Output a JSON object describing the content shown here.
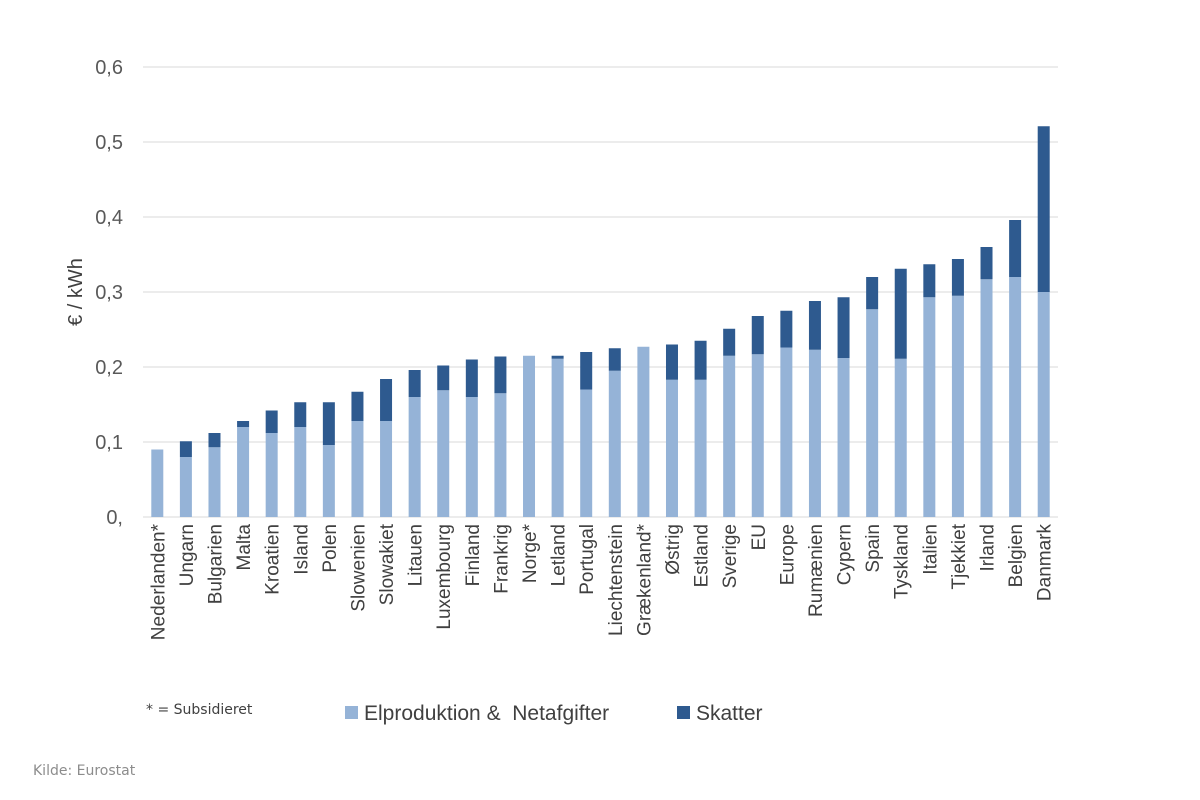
{
  "chart_data": {
    "type": "bar",
    "stacked": true,
    "ylabel": "€ / kWh",
    "ylim": [
      0,
      0.6
    ],
    "yticks": [
      0,
      0.1,
      0.2,
      0.3,
      0.4,
      0.5,
      0.6
    ],
    "ytick_labels": [
      "0,",
      "0,1",
      "0,2",
      "0,3",
      "0,4",
      "0,5",
      "0,6"
    ],
    "grid": true,
    "legend_position": "bottom",
    "categories": [
      "Nederlanden*",
      "Ungarn",
      "Bulgarien",
      "Malta",
      "Kroatien",
      "Island",
      "Polen",
      "Slowenien",
      "Slowakiet",
      "Litauen",
      "Luxembourg",
      "Finland",
      "Frankrig",
      "Norge*",
      "Letland",
      "Portugal",
      "Liechtenstein",
      "Grækenland*",
      "Østrig",
      "Estland",
      "Sverige",
      "EU",
      "Europe",
      "Rumænien",
      "Cypern",
      "Spain",
      "Tyskland",
      "Italien",
      "Tjekkiet",
      "Irland",
      "Belgien",
      "Danmark"
    ],
    "series": [
      {
        "name": "Elproduktion &  Netafgifter",
        "color": "#95b3d7",
        "values": [
          0.09,
          0.08,
          0.093,
          0.12,
          0.112,
          0.12,
          0.096,
          0.128,
          0.128,
          0.16,
          0.169,
          0.16,
          0.165,
          0.215,
          0.211,
          0.17,
          0.195,
          0.227,
          0.183,
          0.183,
          0.215,
          0.217,
          0.226,
          0.223,
          0.212,
          0.277,
          0.211,
          0.293,
          0.295,
          0.317,
          0.32,
          0.3
        ]
      },
      {
        "name": "Skatter",
        "color": "#2e5a8f",
        "values": [
          0,
          0.021,
          0.019,
          0.008,
          0.03,
          0.033,
          0.057,
          0.039,
          0.056,
          0.036,
          0.033,
          0.05,
          0.049,
          0,
          0.004,
          0.05,
          0.03,
          0,
          0.047,
          0.052,
          0.036,
          0.051,
          0.049,
          0.065,
          0.081,
          0.043,
          0.12,
          0.044,
          0.049,
          0.043,
          0.076,
          0.221
        ]
      }
    ]
  },
  "footnote": "* = Subsidieret",
  "source": "Kilde: Eurostat"
}
